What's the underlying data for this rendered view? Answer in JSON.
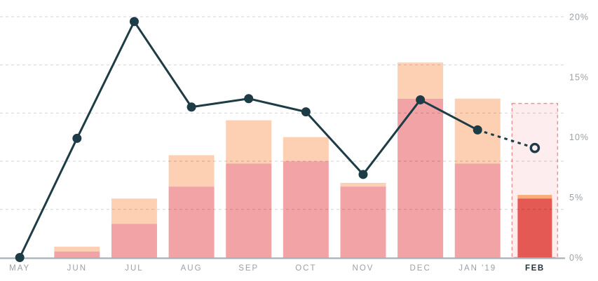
{
  "chart_data": {
    "type": "bar+line",
    "title": "",
    "categories": [
      "MAY",
      "JUN",
      "JUL",
      "AUG",
      "SEP",
      "OCT",
      "NOV",
      "DEC",
      "JAN '19",
      "FEB"
    ],
    "series": [
      {
        "name": "bar-lower-segment",
        "type": "bar-stack-bottom",
        "color": "#f1a3a5",
        "values": [
          0,
          0.5,
          2.8,
          5.9,
          7.8,
          8.0,
          5.9,
          13.2,
          7.8,
          null
        ]
      },
      {
        "name": "bar-upper-segment",
        "type": "bar-stack-top",
        "color": "#fed0b3",
        "values": [
          0,
          0.4,
          2.1,
          2.6,
          3.6,
          2.0,
          0.3,
          3.0,
          5.4,
          null
        ]
      },
      {
        "name": "trend-line",
        "type": "line",
        "color": "#1d3c46",
        "values": [
          0,
          9.9,
          19.6,
          12.5,
          13.2,
          12.1,
          6.9,
          13.1,
          10.6,
          9.1
        ],
        "last_segment_dashed": true,
        "last_point_open": true
      }
    ],
    "forecast": {
      "category": "FEB",
      "region_top_value": 12.8,
      "bar_value": 4.9,
      "bar_cap_value": 0.3,
      "line_value": 9.1,
      "region_fill": "#fdedef",
      "region_border": "#f1908e",
      "bar_color": "#e45953",
      "bar_cap_color": "#fbab79"
    },
    "x_axis": {
      "labels": [
        "MAY",
        "JUN",
        "JUL",
        "AUG",
        "SEP",
        "OCT",
        "NOV",
        "DEC",
        "JAN '19",
        "FEB"
      ],
      "highlight_label": "FEB"
    },
    "y_axis": {
      "side": "right",
      "min": 0,
      "max": 20,
      "tick_values": [
        0,
        5,
        10,
        15,
        20
      ],
      "tick_labels": [
        "0%",
        "5%",
        "10%",
        "15%",
        "20%"
      ]
    },
    "gridlines": {
      "values": [
        4,
        8,
        12,
        16,
        20
      ],
      "style": "dashed"
    },
    "colors": {
      "line": "#1d3c46",
      "axis_line": "#a8b2b8",
      "tick_text": "#9aa1a7",
      "highlight_tick_text": "#24343d",
      "gridline": "rgba(0,0,0,0.135)"
    }
  }
}
